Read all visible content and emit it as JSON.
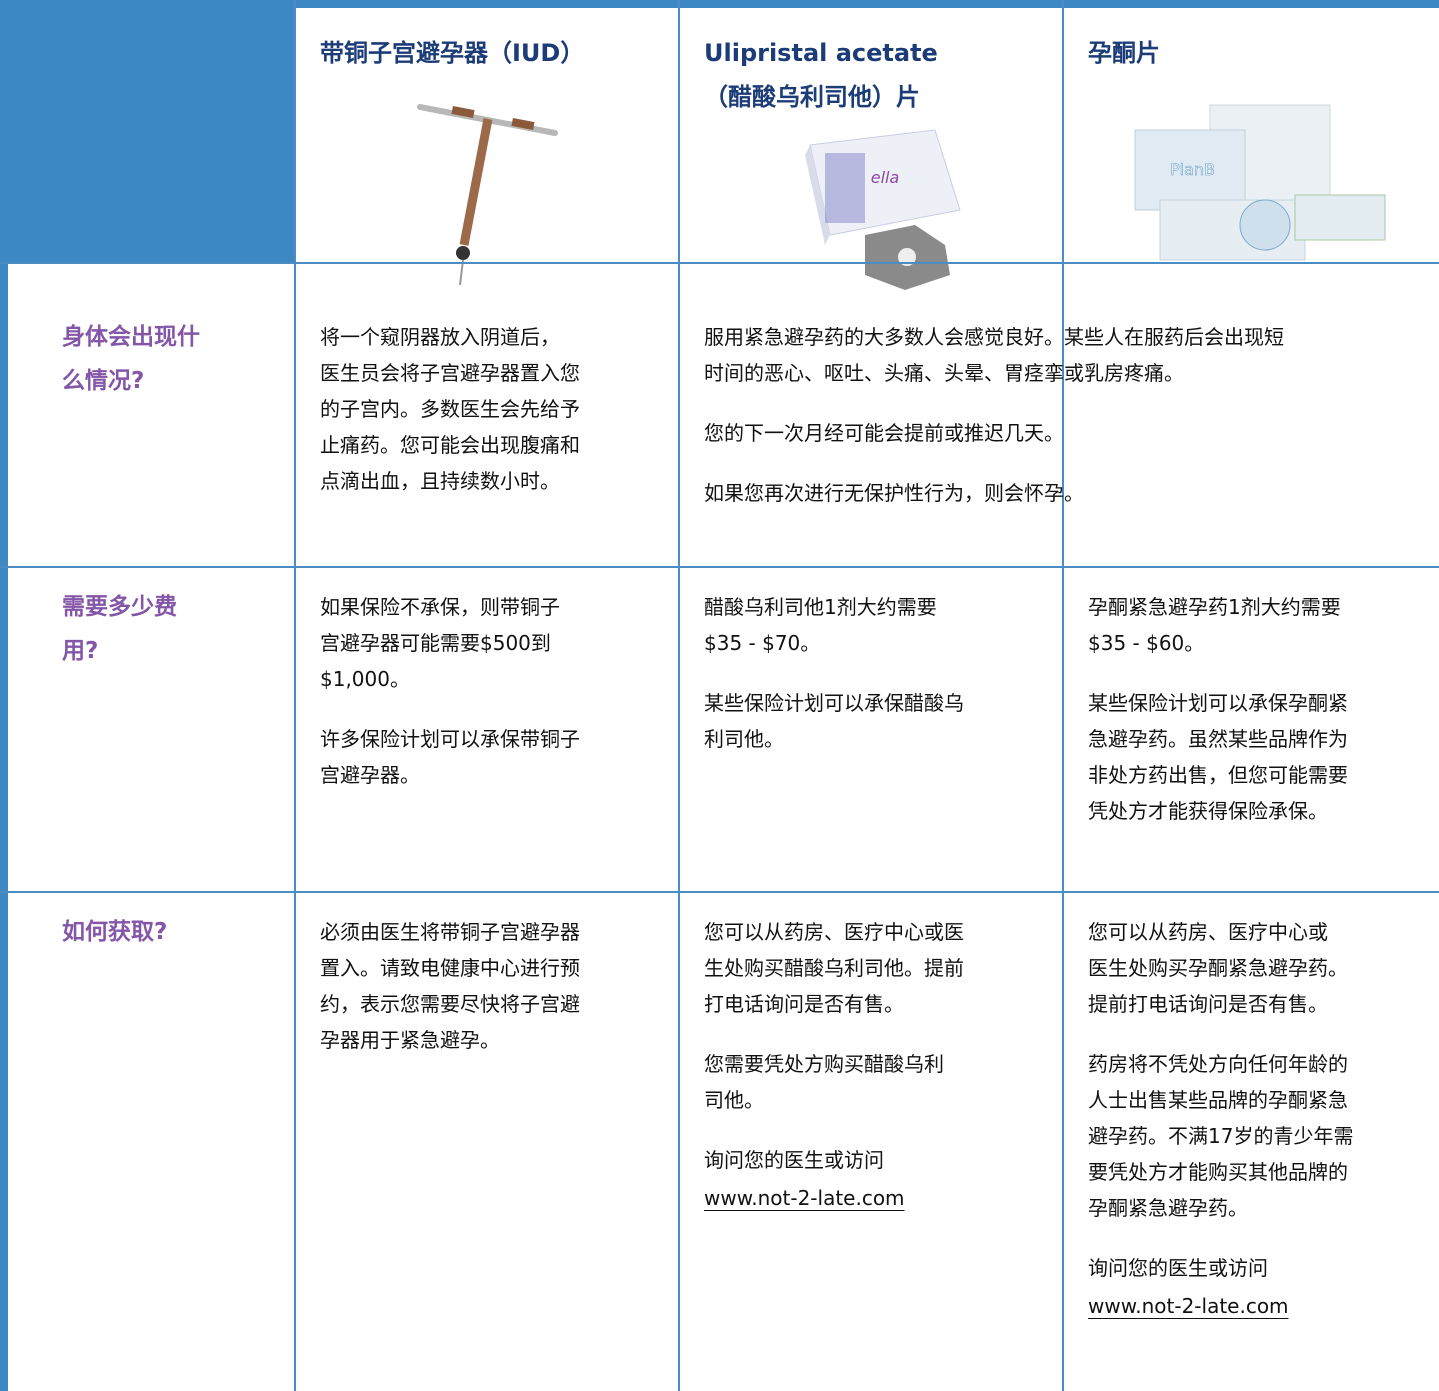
{
  "header": {
    "columns": [
      {
        "title_lines": [
          "带铜子宫避孕器（IUD）"
        ]
      },
      {
        "title_lines": [
          "Ulipristal acetate",
          "（醋酸乌利司他）片"
        ]
      },
      {
        "title_lines": [
          "孕酮片"
        ]
      }
    ]
  },
  "rows": [
    {
      "label": "身体会出现什么情况?",
      "cells": [
        {
          "paragraphs": [
            [
              "将一个窥阴器放入阴道后，",
              "医生员会将子宫避孕器置入您",
              "的子宫内。多数医生会先给予",
              "止痛药。您可能会出现腹痛和",
              "点滴出血，且持续数小时。"
            ]
          ]
        },
        {
          "paragraphs": [
            [
              "服用紧急避孕药的大多数人会感觉良好。某些人在服药后会出现短",
              "时间的恶心、呕吐、头痛、头晕、胃痉挛或乳房疼痛。"
            ],
            [
              "您的下一次月经可能会提前或推迟几天。"
            ],
            [
              "如果您再次进行无保护性行为，则会怀孕。"
            ]
          ]
        }
      ]
    },
    {
      "label": "需要多少费用?",
      "cells": [
        {
          "paragraphs": [
            [
              "如果保险不承保，则带铜子",
              "宫避孕器可能需要$500到",
              "$1,000。"
            ],
            [
              "许多保险计划可以承保带铜子",
              "宫避孕器。"
            ]
          ]
        },
        {
          "paragraphs": [
            [
              "醋酸乌利司他1剂大约需要",
              "$35 - $70。"
            ],
            [
              "某些保险计划可以承保醋酸乌",
              "利司他。"
            ]
          ]
        },
        {
          "paragraphs": [
            [
              "孕酮紧急避孕药1剂大约需要",
              "$35 - $60。"
            ],
            [
              "某些保险计划可以承保孕酮紧",
              "急避孕药。虽然某些品牌作为",
              "非处方药出售，但您可能需要",
              "凭处方才能获得保险承保。"
            ]
          ]
        }
      ]
    },
    {
      "label": "如何获取?",
      "cells": [
        {
          "paragraphs": [
            [
              "必须由医生将带铜子宫避孕器",
              "置入。请致电健康中心进行预",
              "约，表示您需要尽快将子宫避",
              "孕器用于紧急避孕。"
            ]
          ]
        },
        {
          "paragraphs": [
            [
              "您可以从药房、医疗中心或医",
              "生处购买醋酸乌利司他。提前",
              "打电话询问是否有售。"
            ],
            [
              "您需要凭处方购买醋酸乌利",
              "司他。"
            ],
            [
              "询问您的医生或访问"
            ]
          ],
          "link": "www.not-2-late.com"
        },
        {
          "paragraphs": [
            [
              "您可以从药房、医疗中心或",
              "医生处购买孕酮紧急避孕药。",
              "提前打电话询问是否有售。"
            ],
            [
              "药房将不凭处方向任何年龄的",
              "人士出售某些品牌的孕酮紧急",
              "避孕药。不满17岁的青少年需",
              "要凭处方才能购买其他品牌的",
              "孕酮紧急避孕药。"
            ],
            [
              "询问您的医生或访问"
            ]
          ],
          "link": "www.not-2-late.com"
        }
      ]
    }
  ]
}
